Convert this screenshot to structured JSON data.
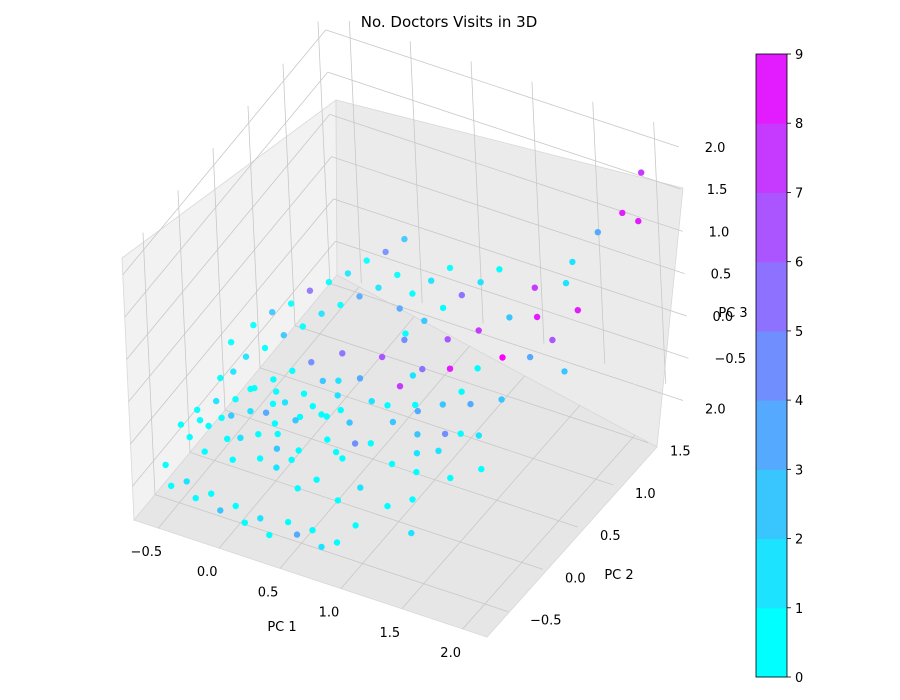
{
  "chart_data": {
    "type": "scatter",
    "projection": "3d",
    "title": "No. Doctors Visits in 3D",
    "xlabel": "PC 1",
    "ylabel": "PC 2",
    "zlabel": "PC 3",
    "xticks": [
      "−0.5",
      "0.0",
      "0.5",
      "1.0",
      "1.5",
      "2.0"
    ],
    "yticks": [
      "−0.5",
      "0.0",
      "0.5",
      "1.0",
      "1.5",
      "2.0"
    ],
    "zticks": [
      "−0.5",
      "0.0",
      "0.5",
      "1.0",
      "1.5",
      "2.0"
    ],
    "xlim": [
      -0.7,
      2.2
    ],
    "ylim": [
      -0.8,
      2.1
    ],
    "zlim": [
      -0.9,
      2.2
    ],
    "grid": true,
    "colormap": "cool",
    "colorbar": {
      "label": "",
      "min": 0,
      "max": 9,
      "ticks": [
        "0",
        "1",
        "2",
        "3",
        "4",
        "5",
        "6",
        "7",
        "8",
        "9"
      ],
      "colors": [
        "#00ffff",
        "#1ce3ff",
        "#39c6ff",
        "#55aaff",
        "#718eff",
        "#8e71ff",
        "#aa55ff",
        "#c639ff",
        "#e31cff"
      ]
    },
    "points": [
      [
        -0.55,
        -0.35,
        -0.15,
        0
      ],
      [
        -0.5,
        -0.2,
        -0.1,
        0
      ],
      [
        -0.45,
        -0.4,
        -0.2,
        0
      ],
      [
        -0.4,
        -0.1,
        -0.05,
        1
      ],
      [
        -0.35,
        -0.3,
        -0.12,
        0
      ],
      [
        -0.3,
        0.0,
        -0.08,
        0
      ],
      [
        -0.3,
        -0.45,
        -0.25,
        0
      ],
      [
        -0.25,
        -0.15,
        -0.1,
        2
      ],
      [
        -0.2,
        0.1,
        0.0,
        0
      ],
      [
        -0.2,
        -0.3,
        -0.2,
        0
      ],
      [
        -0.15,
        -0.05,
        -0.1,
        1
      ],
      [
        -0.1,
        0.2,
        0.05,
        0
      ],
      [
        -0.1,
        -0.4,
        -0.3,
        0
      ],
      [
        -0.05,
        0.0,
        -0.12,
        3
      ],
      [
        0.0,
        -0.2,
        -0.15,
        0
      ],
      [
        0.0,
        0.3,
        0.1,
        0
      ],
      [
        0.05,
        0.1,
        -0.05,
        1
      ],
      [
        0.1,
        -0.1,
        -0.2,
        0
      ],
      [
        0.1,
        0.4,
        0.15,
        4
      ],
      [
        0.15,
        0.2,
        0.0,
        0
      ],
      [
        0.2,
        -0.3,
        -0.35,
        1
      ],
      [
        0.2,
        0.05,
        -0.1,
        0
      ],
      [
        0.25,
        0.3,
        0.1,
        2
      ],
      [
        0.3,
        -0.15,
        -0.25,
        0
      ],
      [
        0.3,
        0.5,
        0.25,
        5
      ],
      [
        0.35,
        0.1,
        -0.05,
        0
      ],
      [
        0.4,
        -0.35,
        -0.45,
        0
      ],
      [
        0.4,
        0.25,
        0.05,
        1
      ],
      [
        0.45,
        0.0,
        -0.2,
        0
      ],
      [
        0.5,
        0.4,
        0.15,
        3
      ],
      [
        0.5,
        -0.25,
        -0.4,
        0
      ],
      [
        0.55,
        0.15,
        -0.1,
        2
      ],
      [
        0.6,
        0.55,
        0.3,
        6
      ],
      [
        0.6,
        -0.05,
        -0.3,
        0
      ],
      [
        0.65,
        0.3,
        0.05,
        1
      ],
      [
        0.7,
        -0.3,
        -0.5,
        0
      ],
      [
        0.7,
        0.7,
        0.4,
        4
      ],
      [
        0.75,
        0.1,
        -0.2,
        0
      ],
      [
        0.8,
        0.45,
        0.15,
        7
      ],
      [
        0.8,
        -0.15,
        -0.45,
        1
      ],
      [
        0.85,
        0.25,
        -0.05,
        2
      ],
      [
        0.9,
        0.6,
        0.25,
        5
      ],
      [
        0.9,
        -0.4,
        -0.6,
        0
      ],
      [
        0.95,
        0.05,
        -0.3,
        0
      ],
      [
        1.0,
        0.8,
        0.45,
        6
      ],
      [
        1.0,
        0.35,
        0.05,
        3
      ],
      [
        1.05,
        -0.2,
        -0.5,
        0
      ],
      [
        1.1,
        0.15,
        -0.2,
        1
      ],
      [
        1.1,
        0.65,
        0.3,
        8
      ],
      [
        1.15,
        0.45,
        0.1,
        2
      ],
      [
        1.2,
        -0.1,
        -0.45,
        0
      ],
      [
        1.2,
        0.9,
        0.55,
        7
      ],
      [
        1.25,
        0.3,
        -0.05,
        4
      ],
      [
        1.3,
        0.7,
        0.35,
        0
      ],
      [
        1.3,
        -0.3,
        -0.6,
        1
      ],
      [
        1.35,
        0.5,
        0.15,
        3
      ],
      [
        1.4,
        1.0,
        0.7,
        2
      ],
      [
        1.4,
        0.1,
        -0.3,
        0
      ],
      [
        1.45,
        0.8,
        0.45,
        9
      ],
      [
        1.5,
        0.35,
        0.0,
        1
      ],
      [
        1.5,
        1.2,
        0.9,
        7
      ],
      [
        1.55,
        0.6,
        0.2,
        2
      ],
      [
        1.6,
        1.05,
        0.75,
        8
      ],
      [
        1.6,
        0.2,
        -0.2,
        0
      ],
      [
        1.65,
        0.85,
        0.5,
        3
      ],
      [
        1.7,
        1.4,
        1.1,
        1
      ],
      [
        1.75,
        1.0,
        0.6,
        6
      ],
      [
        1.8,
        1.6,
        1.3,
        3
      ],
      [
        1.85,
        1.2,
        0.8,
        8
      ],
      [
        1.9,
        0.9,
        0.4,
        2
      ],
      [
        1.95,
        1.7,
        1.5,
        8
      ],
      [
        2.0,
        1.9,
        1.8,
        7
      ],
      [
        2.05,
        1.75,
        1.4,
        8
      ],
      [
        1.7,
        1.3,
        0.95,
        1
      ],
      [
        1.25,
        0.55,
        0.2,
        0
      ],
      [
        -0.45,
        0.05,
        0.05,
        0
      ],
      [
        -0.35,
        0.25,
        0.15,
        1
      ],
      [
        -0.25,
        0.35,
        0.2,
        0
      ],
      [
        -0.15,
        0.45,
        0.3,
        2
      ],
      [
        -0.05,
        0.55,
        0.35,
        0
      ],
      [
        0.05,
        0.65,
        0.45,
        1
      ],
      [
        0.15,
        0.75,
        0.5,
        0
      ],
      [
        0.25,
        0.85,
        0.55,
        3
      ],
      [
        0.35,
        0.95,
        0.6,
        1
      ],
      [
        0.45,
        1.05,
        0.7,
        0
      ],
      [
        -0.5,
        0.3,
        0.2,
        0
      ],
      [
        -0.4,
        0.45,
        0.3,
        0
      ],
      [
        -0.3,
        0.55,
        0.4,
        2
      ],
      [
        -0.2,
        0.65,
        0.45,
        0
      ],
      [
        -0.1,
        0.75,
        0.55,
        5
      ],
      [
        0.0,
        0.85,
        0.6,
        0
      ],
      [
        0.1,
        0.95,
        0.65,
        1
      ],
      [
        0.2,
        1.05,
        0.75,
        0
      ],
      [
        0.3,
        1.15,
        0.8,
        4
      ],
      [
        0.4,
        1.25,
        0.9,
        2
      ],
      [
        0.6,
        1.0,
        0.6,
        0
      ],
      [
        0.7,
        1.1,
        0.7,
        1
      ],
      [
        0.8,
        1.2,
        0.8,
        0
      ],
      [
        0.55,
        0.9,
        0.5,
        3
      ],
      [
        0.65,
        0.8,
        0.35,
        0
      ],
      [
        0.75,
        0.9,
        0.45,
        2
      ],
      [
        0.85,
        1.0,
        0.55,
        0
      ],
      [
        0.95,
        1.1,
        0.65,
        5
      ],
      [
        1.05,
        1.2,
        0.75,
        1
      ],
      [
        1.15,
        1.3,
        0.85,
        0
      ],
      [
        -0.6,
        -0.5,
        -0.5,
        0
      ],
      [
        -0.5,
        -0.6,
        -0.6,
        0
      ],
      [
        -0.4,
        -0.55,
        -0.55,
        1
      ],
      [
        -0.3,
        -0.6,
        -0.65,
        0
      ],
      [
        -0.2,
        -0.55,
        -0.6,
        0
      ],
      [
        -0.1,
        -0.6,
        -0.7,
        2
      ],
      [
        0.0,
        -0.55,
        -0.65,
        0
      ],
      [
        0.1,
        -0.6,
        -0.75,
        0
      ],
      [
        0.2,
        -0.55,
        -0.7,
        1
      ],
      [
        0.3,
        -0.6,
        -0.8,
        0
      ],
      [
        0.4,
        -0.5,
        -0.7,
        0
      ],
      [
        0.5,
        -0.55,
        -0.75,
        3
      ],
      [
        0.6,
        -0.5,
        -0.7,
        0
      ],
      [
        0.7,
        -0.55,
        -0.8,
        1
      ],
      [
        0.8,
        -0.5,
        -0.75,
        0
      ],
      [
        -0.05,
        0.15,
        -0.02,
        0
      ],
      [
        0.05,
        -0.05,
        -0.15,
        0
      ],
      [
        0.15,
        -0.2,
        -0.25,
        2
      ],
      [
        0.25,
        0.15,
        -0.05,
        0
      ],
      [
        0.35,
        0.35,
        0.1,
        1
      ],
      [
        0.45,
        0.2,
        -0.05,
        0
      ],
      [
        0.55,
        -0.05,
        -0.25,
        0
      ],
      [
        0.65,
        0.05,
        -0.2,
        4
      ],
      [
        0.75,
        0.35,
        0.0,
        0
      ],
      [
        0.85,
        0.55,
        0.2,
        1
      ],
      [
        0.95,
        0.4,
        0.05,
        0
      ],
      [
        1.05,
        0.25,
        -0.1,
        2
      ],
      [
        1.15,
        0.05,
        -0.3,
        0
      ],
      [
        1.25,
        0.2,
        -0.15,
        1
      ],
      [
        1.35,
        0.35,
        -0.05,
        0
      ],
      [
        -0.45,
        -0.25,
        -0.15,
        0
      ],
      [
        -0.4,
        0.15,
        0.05,
        1
      ],
      [
        -0.3,
        -0.2,
        -0.1,
        0
      ],
      [
        -0.22,
        0.08,
        0.0,
        0
      ],
      [
        -0.12,
        -0.25,
        -0.2,
        1
      ],
      [
        -0.02,
        0.05,
        -0.05,
        0
      ],
      [
        0.08,
        -0.32,
        -0.28,
        0
      ],
      [
        0.18,
        0.02,
        -0.12,
        2
      ],
      [
        0.28,
        -0.22,
        -0.3,
        0
      ],
      [
        0.38,
        0.12,
        -0.08,
        0
      ]
    ]
  }
}
